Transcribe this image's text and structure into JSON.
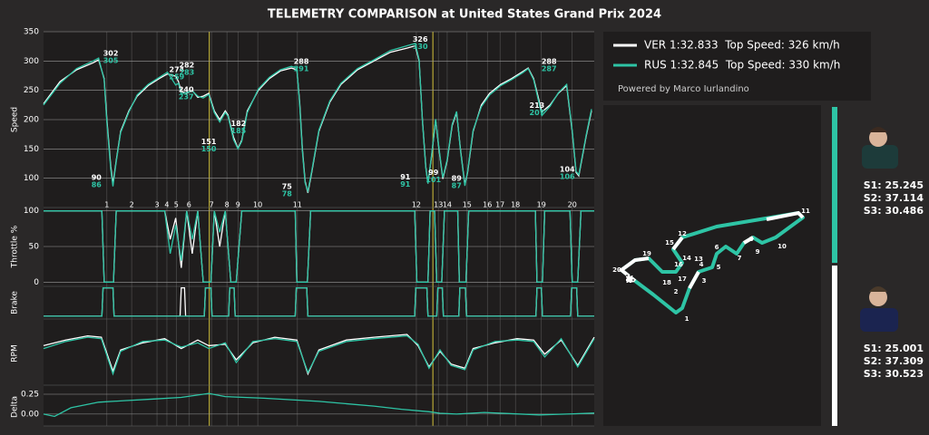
{
  "title": "TELEMETRY COMPARISON at United States Grand Prix 2024",
  "powered_by": "Powered by Marco Iurlandino",
  "chart_data": [
    {
      "type": "line",
      "ylabel": "Speed",
      "xlim": [
        0,
        100
      ],
      "ylim": [
        50,
        350
      ],
      "yticks": [
        100,
        150,
        200,
        250,
        300,
        350
      ],
      "grid": true,
      "x": [
        0,
        3,
        6,
        9,
        10,
        11,
        11.5,
        12.2,
        12.6,
        13.2,
        14,
        15.5,
        17,
        19,
        21,
        22.5,
        24,
        24.5,
        25,
        26,
        27,
        28,
        29,
        30,
        31,
        32,
        33,
        33.5,
        34.5,
        35.3,
        36,
        37,
        39,
        41,
        43,
        45,
        46,
        46.5,
        47,
        47.5,
        48,
        48.7,
        50,
        52,
        54,
        57,
        60,
        63,
        66,
        67.5,
        68.2,
        68.8,
        69.4,
        69.8,
        70.5,
        71.2,
        71.8,
        72.5,
        73.3,
        74.2,
        75,
        75.7,
        76.5,
        77,
        78,
        79.5,
        81,
        83,
        85,
        87,
        88,
        89,
        90.5,
        92,
        93.5,
        95,
        96,
        96.7,
        97.2,
        98.5,
        99.5
      ],
      "series": [
        {
          "name": "VER 1:32.833  Top Speed: 326 km/h",
          "color": "#ffffff",
          "values": [
            227,
            265,
            285,
            297,
            302,
            270,
            200,
            120,
            90,
            130,
            180,
            215,
            240,
            258,
            270,
            278,
            274,
            265,
            248,
            245,
            250,
            238,
            240,
            245,
            215,
            200,
            215,
            208,
            170,
            151,
            165,
            215,
            250,
            270,
            283,
            288,
            285,
            230,
            150,
            95,
            75,
            110,
            180,
            230,
            260,
            285,
            300,
            315,
            322,
            326,
            300,
            200,
            120,
            91,
            140,
            200,
            150,
            99,
            130,
            190,
            212,
            150,
            89,
            110,
            180,
            225,
            245,
            260,
            270,
            282,
            288,
            270,
            213,
            225,
            245,
            258,
            180,
            110,
            104,
            170,
            215
          ]
        },
        {
          "name": "RUS 1:32.845  Top Speed: 330 km/h",
          "color": "#2ec4a5",
          "values": [
            225,
            262,
            287,
            300,
            305,
            268,
            195,
            115,
            86,
            128,
            178,
            213,
            242,
            260,
            272,
            281,
            259,
            262,
            244,
            246,
            249,
            240,
            237,
            243,
            212,
            196,
            212,
            206,
            166,
            150,
            163,
            212,
            252,
            272,
            285,
            291,
            288,
            226,
            146,
            92,
            78,
            112,
            182,
            232,
            262,
            287,
            302,
            318,
            326,
            330,
            302,
            198,
            118,
            91,
            142,
            201,
            152,
            101,
            132,
            192,
            214,
            148,
            87,
            112,
            182,
            222,
            242,
            258,
            268,
            280,
            287,
            268,
            207,
            223,
            246,
            260,
            182,
            112,
            106,
            172,
            218
          ]
        }
      ],
      "annotations": [
        {
          "x": 12.2,
          "values": [
            302,
            305
          ]
        },
        {
          "x": 9.6,
          "values": [
            90,
            86
          ]
        },
        {
          "x": 24.2,
          "values": [
            274,
            259
          ]
        },
        {
          "x": 26.0,
          "values": [
            282,
            283
          ]
        },
        {
          "x": 25.9,
          "values": [
            240,
            237
          ]
        },
        {
          "x": 30.0,
          "values": [
            151,
            150
          ]
        },
        {
          "x": 35.4,
          "values": [
            182,
            185
          ]
        },
        {
          "x": 46.8,
          "values": [
            288,
            291
          ]
        },
        {
          "x": 44.2,
          "values": [
            75,
            78
          ]
        },
        {
          "x": 68.4,
          "values": [
            326,
            330
          ]
        },
        {
          "x": 65.7,
          "values": [
            91,
            91
          ]
        },
        {
          "x": 70.8,
          "values": [
            99,
            101
          ]
        },
        {
          "x": 75.0,
          "values": [
            89,
            87
          ]
        },
        {
          "x": 91.8,
          "values": [
            288,
            287
          ]
        },
        {
          "x": 89.6,
          "values": [
            213,
            207
          ]
        },
        {
          "x": 95.1,
          "values": [
            104,
            106
          ]
        }
      ],
      "corners": {
        "numbers": [
          1,
          2,
          3,
          4,
          5,
          6,
          7,
          8,
          9,
          10,
          11,
          12,
          13,
          14,
          15,
          16,
          17,
          18,
          19,
          20
        ],
        "x": [
          11.5,
          16.0,
          20.6,
          22.4,
          24.1,
          26.4,
          30.5,
          33.3,
          35.3,
          38.9,
          46.1,
          67.7,
          71.7,
          73.3,
          76.9,
          80.6,
          82.9,
          85.7,
          90.4,
          96.0
        ]
      },
      "sector_lines": [
        30.1,
        70.7
      ]
    },
    {
      "type": "line",
      "ylabel": "Throttle %",
      "xlim": [
        0,
        100
      ],
      "ylim": [
        -6,
        106
      ],
      "yticks": [
        0,
        50,
        100
      ],
      "grid": true,
      "x": [
        0,
        10.6,
        11,
        12.7,
        13.2,
        22,
        23,
        24,
        25,
        26,
        27,
        28,
        29,
        30.4,
        31,
        32,
        33,
        34,
        35,
        36,
        45.7,
        46,
        47.9,
        48.5,
        67.4,
        67.8,
        69.8,
        70.2,
        71,
        71.4,
        72.3,
        72.8,
        75.2,
        75.5,
        76.7,
        77.2,
        89.3,
        89.6,
        90.6,
        91,
        95.6,
        96,
        97,
        97.6,
        100
      ],
      "series": [
        {
          "color": "#ffffff",
          "values": [
            100,
            100,
            0,
            0,
            100,
            100,
            60,
            90,
            20,
            100,
            40,
            100,
            0,
            0,
            100,
            50,
            100,
            0,
            0,
            100,
            100,
            0,
            0,
            100,
            100,
            0,
            0,
            100,
            100,
            0,
            0,
            100,
            100,
            0,
            0,
            100,
            100,
            0,
            0,
            100,
            100,
            0,
            0,
            100,
            100
          ]
        },
        {
          "color": "#2ec4a5",
          "values": [
            100,
            100,
            0,
            0,
            100,
            100,
            40,
            80,
            30,
            100,
            60,
            100,
            0,
            0,
            100,
            70,
            100,
            0,
            0,
            100,
            100,
            0,
            0,
            100,
            100,
            0,
            0,
            100,
            100,
            0,
            0,
            100,
            100,
            0,
            0,
            100,
            100,
            0,
            0,
            100,
            100,
            0,
            0,
            100,
            100
          ]
        }
      ]
    },
    {
      "type": "line",
      "ylabel": "Brake",
      "xlim": [
        0,
        100
      ],
      "ylim": [
        -0.1,
        1.05
      ],
      "x": [
        0,
        10.6,
        10.8,
        12.6,
        12.8,
        24.8,
        25,
        25.6,
        25.8,
        29.2,
        29.4,
        30.4,
        30.6,
        33.6,
        33.8,
        34.6,
        34.8,
        45.7,
        45.9,
        47.8,
        48,
        67.4,
        67.6,
        69.6,
        69.8,
        71.4,
        71.6,
        72.4,
        72.6,
        75.4,
        75.6,
        76.6,
        76.8,
        89.4,
        89.6,
        90.4,
        90.6,
        95.7,
        95.9,
        96.8,
        97,
        100
      ],
      "series": [
        {
          "color": "#ffffff",
          "values": [
            0,
            0,
            1,
            1,
            0,
            0,
            1,
            1,
            0,
            0,
            1,
            1,
            0,
            0,
            1,
            1,
            0,
            0,
            1,
            1,
            0,
            0,
            1,
            1,
            0,
            0,
            1,
            1,
            0,
            0,
            1,
            1,
            0,
            0,
            1,
            1,
            0,
            0,
            1,
            1,
            0,
            0
          ]
        },
        {
          "color": "#2ec4a5",
          "values": [
            0,
            0,
            1,
            1,
            0,
            0,
            0,
            0,
            0,
            0,
            1,
            1,
            0,
            0,
            1,
            1,
            0,
            0,
            1,
            1,
            0,
            0,
            1,
            1,
            0,
            0,
            1,
            1,
            0,
            0,
            1,
            1,
            0,
            0,
            1,
            1,
            0,
            0,
            1,
            1,
            0,
            0
          ]
        }
      ]
    },
    {
      "type": "line",
      "ylabel": "RPM",
      "xlim": [
        0,
        100
      ],
      "ylim": [
        8000,
        12500
      ],
      "x": [
        0,
        4,
        8,
        10.5,
        12.6,
        14,
        18,
        22,
        25,
        28,
        30,
        33,
        35,
        38,
        42,
        46,
        48,
        50,
        55,
        60,
        66,
        68,
        70,
        72,
        74,
        76.5,
        78,
        82,
        86,
        89,
        91,
        94,
        97,
        100
      ],
      "series": [
        {
          "color": "#ffffff",
          "values": [
            10800,
            11200,
            11500,
            11400,
            9000,
            10500,
            11000,
            11300,
            10600,
            11200,
            10800,
            10900,
            9800,
            11000,
            11400,
            11200,
            8800,
            10500,
            11200,
            11400,
            11600,
            10800,
            9300,
            10400,
            9500,
            9200,
            10600,
            11000,
            11300,
            11200,
            10200,
            11200,
            9400,
            11400
          ]
        },
        {
          "color": "#2ec4a5",
          "values": [
            10600,
            11100,
            11400,
            11300,
            8800,
            10400,
            11100,
            11200,
            10700,
            11000,
            10600,
            11000,
            9600,
            11100,
            11300,
            11100,
            8900,
            10400,
            11100,
            11300,
            11500,
            10900,
            9200,
            10500,
            9400,
            9100,
            10500,
            11100,
            11200,
            11100,
            10000,
            11300,
            9300,
            11300
          ]
        }
      ]
    },
    {
      "type": "line",
      "ylabel": "Delta",
      "xlim": [
        0,
        100
      ],
      "ylim": [
        -0.15,
        0.33
      ],
      "yticks": [
        {
          "value": 0,
          "label": "0.00"
        },
        0.25
      ],
      "grid": true,
      "x": [
        0,
        2,
        5,
        10,
        15,
        20,
        25,
        28,
        30,
        33,
        40,
        50,
        60,
        65,
        70,
        72,
        75,
        80,
        90,
        95,
        100
      ],
      "series": [
        {
          "color": "#2ec4a5",
          "values": [
            0,
            -0.03,
            0.08,
            0.15,
            0.17,
            0.19,
            0.21,
            0.24,
            0.26,
            0.22,
            0.2,
            0.16,
            0.1,
            0.06,
            0.03,
            0.01,
            0,
            0.02,
            -0.01,
            0,
            0.012
          ]
        }
      ]
    }
  ],
  "track_map": {
    "corners": [
      1,
      2,
      3,
      4,
      5,
      6,
      7,
      8,
      9,
      10,
      11,
      12,
      13,
      14,
      15,
      16,
      17,
      18,
      19,
      20
    ]
  },
  "drivers": [
    {
      "sectors": [
        "S1: 25.245",
        "S2: 37.114",
        "S3: 30.486"
      ]
    },
    {
      "sectors": [
        "S1: 25.001",
        "S2: 37.309",
        "S3: 30.523"
      ]
    }
  ]
}
